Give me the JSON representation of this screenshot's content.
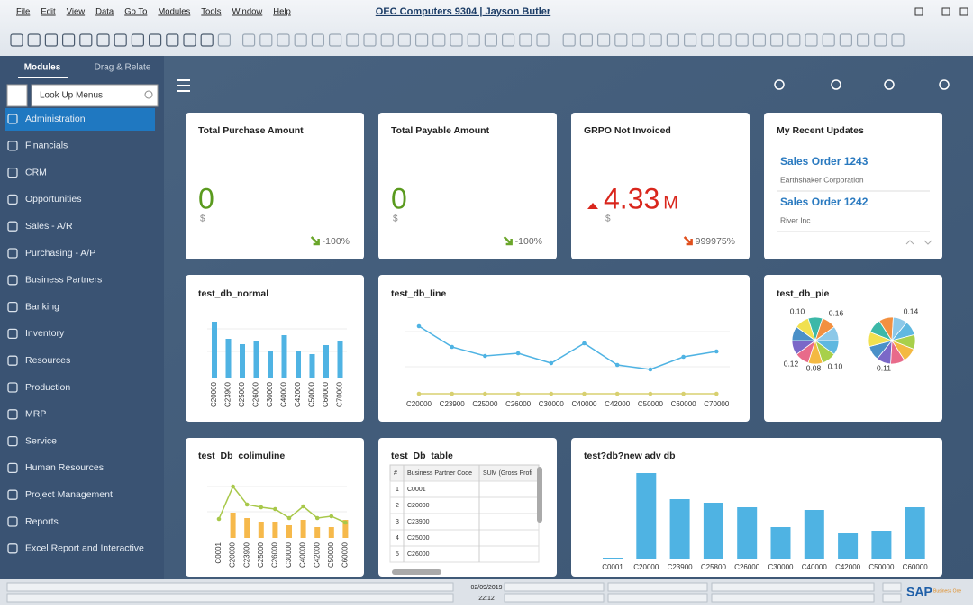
{
  "menu": [
    "File",
    "Edit",
    "View",
    "Data",
    "Go To",
    "Modules",
    "Tools",
    "Window",
    "Help"
  ],
  "window_title": "OEC Computers 9304 | Jayson Butler",
  "sidebar": {
    "tabs": [
      "Modules",
      "Drag & Relate"
    ],
    "search_placeholder": "Look Up Menus",
    "items": [
      "Administration",
      "Financials",
      "CRM",
      "Opportunities",
      "Sales - A/R",
      "Purchasing - A/P",
      "Business Partners",
      "Banking",
      "Inventory",
      "Resources",
      "Production",
      "MRP",
      "Service",
      "Human Resources",
      "Project Management",
      "Reports",
      "Excel Report and Interactive"
    ]
  },
  "kpis": [
    {
      "title": "Total Purchase Amount",
      "value": 0,
      "unit": "$",
      "change": "-100%",
      "color": "#5a9a1e",
      "trend_color": "#6aa62a"
    },
    {
      "title": "Total Payable Amount",
      "value": 0,
      "unit": "$",
      "change": "-100%",
      "color": "#5a9a1e",
      "trend_color": "#6aa62a"
    },
    {
      "title": "GRPO Not Invoiced",
      "value": 4.33,
      "suffix": "M",
      "unit": "$",
      "change": "999975%",
      "color": "#d9261c",
      "trend_color": "#e0501e"
    }
  ],
  "recent": {
    "title": "My Recent Updates",
    "items": [
      {
        "title": "Sales Order 1243",
        "subtitle": "Earthshaker Corporation"
      },
      {
        "title": "Sales Order 1242",
        "subtitle": "River Inc"
      }
    ]
  },
  "normal": {
    "title": "test_db_normal",
    "color": "#4fb3e3",
    "categories": [
      "C20000",
      "C23900",
      "C25000",
      "C26000",
      "C30000",
      "C40000",
      "C42000",
      "C50000",
      "C60000",
      "C70000"
    ],
    "values": [
      63,
      44,
      38,
      42,
      30,
      48,
      30,
      27,
      37,
      42
    ]
  },
  "line": {
    "title": "test_db_line",
    "categories": [
      "C20000",
      "C23900",
      "C25000",
      "C26000",
      "C30000",
      "C40000",
      "C42000",
      "C50000",
      "C60000",
      "C70000"
    ],
    "series": [
      {
        "color": "#4fb3e3",
        "values": [
          75,
          52,
          42,
          45,
          34,
          56,
          32,
          27,
          41,
          47
        ]
      },
      {
        "color": "#d8d070",
        "values": [
          0,
          0,
          0,
          0,
          0,
          0,
          0,
          0,
          0,
          0
        ]
      }
    ]
  },
  "pie": {
    "title": "test_db_pie",
    "labels": [
      "0.10",
      "0.16",
      "0.12",
      "0.08",
      "0.10",
      "0.14",
      "0.11"
    ]
  },
  "colline": {
    "title": "test_Db_colimuline",
    "categories": [
      "C0001",
      "C20000",
      "C23900",
      "C25000",
      "C26000",
      "C30000",
      "C40000",
      "C42000",
      "C50000",
      "C60000"
    ],
    "bars": {
      "color": "#f6b94b",
      "values": [
        0,
        28,
        22,
        18,
        18,
        14,
        20,
        12,
        12,
        20
      ]
    },
    "line": {
      "color": "#a8c84a",
      "values": [
        21,
        57,
        37,
        34,
        32,
        22,
        35,
        22,
        24,
        17
      ]
    }
  },
  "table": {
    "title": "test_Db_table",
    "columns": [
      "#",
      "Business Partner Code",
      "SUM (Gross Profi"
    ],
    "rows": [
      [
        "1",
        "C0001"
      ],
      [
        "2",
        "C20000"
      ],
      [
        "3",
        "C23900"
      ],
      [
        "4",
        "C25000"
      ],
      [
        "5",
        "C26000"
      ]
    ]
  },
  "adv": {
    "title": "test?db?new adv db",
    "color": "#4fb3e3",
    "categories": [
      "C0001",
      "C20000",
      "C23900",
      "C25800",
      "C26000",
      "C30000",
      "C40000",
      "C42000",
      "C50000",
      "C60000"
    ],
    "values": [
      1,
      95,
      66,
      62,
      57,
      35,
      54,
      29,
      31,
      57
    ]
  },
  "status": {
    "date": "02/09/2019",
    "time": "22:12"
  },
  "logo": {
    "brand": "SAP",
    "sub": "Business One"
  }
}
